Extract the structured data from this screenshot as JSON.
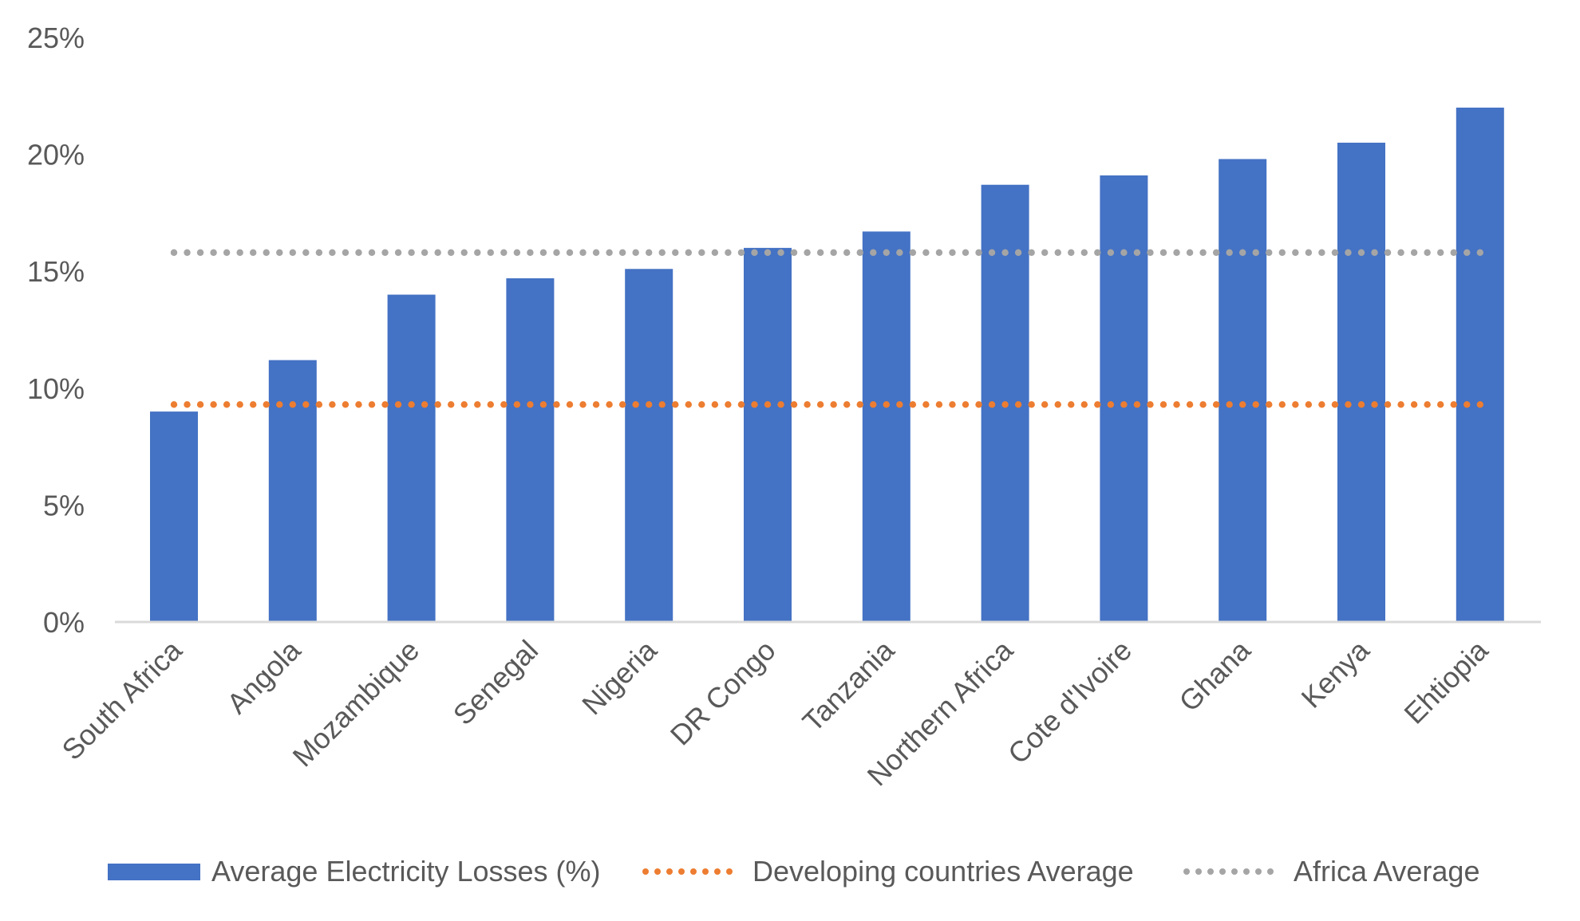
{
  "chart_data": {
    "type": "bar",
    "title": "",
    "xlabel": "",
    "ylabel": "",
    "ylim": [
      0,
      25
    ],
    "y_ticks": [
      0,
      5,
      10,
      15,
      20,
      25
    ],
    "y_tick_labels": [
      "0%",
      "5%",
      "10%",
      "15%",
      "20%",
      "25%"
    ],
    "grid": false,
    "categories": [
      "South Africa",
      "Angola",
      "Mozambique",
      "Senegal",
      "Nigeria",
      "DR Congo",
      "Tanzania",
      "Northern Africa",
      "Cote d'Ivoire",
      "Ghana",
      "Kenya",
      "Ehtiopia"
    ],
    "series": [
      {
        "name": "Average Electricity Losses (%)",
        "kind": "bar",
        "color": "#4472C4",
        "values": [
          9.0,
          11.2,
          14.0,
          14.7,
          15.1,
          16.0,
          16.7,
          18.7,
          19.1,
          19.8,
          20.5,
          22.0
        ]
      },
      {
        "name": "Developing countries Average",
        "kind": "dotted-line",
        "color": "#ED7D31",
        "values": [
          9.3,
          9.3,
          9.3,
          9.3,
          9.3,
          9.3,
          9.3,
          9.3,
          9.3,
          9.3,
          9.3,
          9.3
        ]
      },
      {
        "name": "Africa Average",
        "kind": "dotted-line",
        "color": "#A5A5A5",
        "values": [
          15.8,
          15.8,
          15.8,
          15.8,
          15.8,
          15.8,
          15.8,
          15.8,
          15.8,
          15.8,
          15.8,
          15.8
        ]
      }
    ],
    "legend_position": "bottom",
    "x_label_rotation": "diagonal"
  },
  "legend": {
    "items": [
      {
        "label": "Average Electricity Losses (%)",
        "color": "#4472C4"
      },
      {
        "label": "Developing countries Average",
        "color": "#ED7D31"
      },
      {
        "label": "Africa Average",
        "color": "#A5A5A5"
      }
    ]
  },
  "colors": {
    "text": "#595959",
    "axis": "#D9D9D9"
  }
}
